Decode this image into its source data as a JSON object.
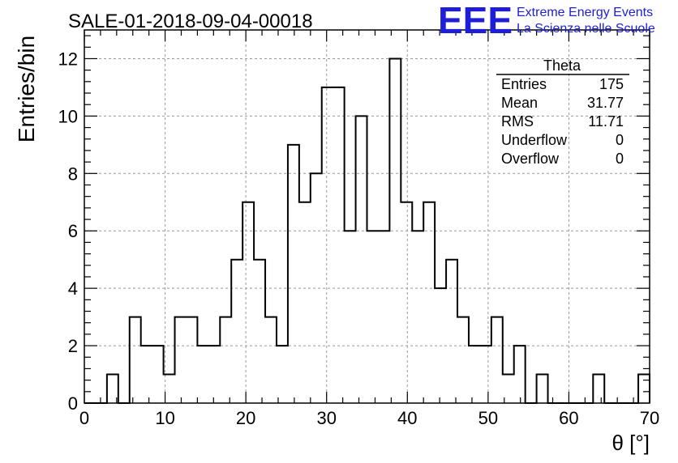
{
  "header": {
    "run_title": "SALE-01-2018-09-04-00018",
    "logo_text": "EEE",
    "logo_line1": "Extreme Energy Events",
    "logo_line2": "La Scienza nelle Scuole",
    "logo_color": "#1e1ed8"
  },
  "stats": {
    "title": "Theta",
    "rows": [
      {
        "label": "Entries",
        "value": "175"
      },
      {
        "label": "Mean",
        "value": "31.77"
      },
      {
        "label": "RMS",
        "value": "11.71"
      },
      {
        "label": "Underflow",
        "value": "0"
      },
      {
        "label": "Overflow",
        "value": "0"
      }
    ]
  },
  "chart_data": {
    "type": "bar",
    "histogram": true,
    "xlabel": "θ [°]",
    "ylabel": "Entries/bin",
    "xlim": [
      0,
      70
    ],
    "ylim": [
      0,
      13
    ],
    "bin_width": 1.4,
    "x_ticks": [
      0,
      10,
      20,
      30,
      40,
      50,
      60,
      70
    ],
    "y_ticks": [
      0,
      2,
      4,
      6,
      8,
      10,
      12
    ],
    "grid": true,
    "values": [
      0,
      0,
      1,
      0,
      3,
      2,
      2,
      1,
      3,
      3,
      2,
      2,
      3,
      5,
      7,
      5,
      3,
      2,
      9,
      7,
      8,
      11,
      11,
      6,
      10,
      6,
      6,
      12,
      7,
      6,
      7,
      4,
      5,
      3,
      2,
      2,
      3,
      1,
      2,
      0,
      1,
      0,
      0,
      0,
      0,
      1,
      0,
      0,
      0,
      1
    ]
  }
}
